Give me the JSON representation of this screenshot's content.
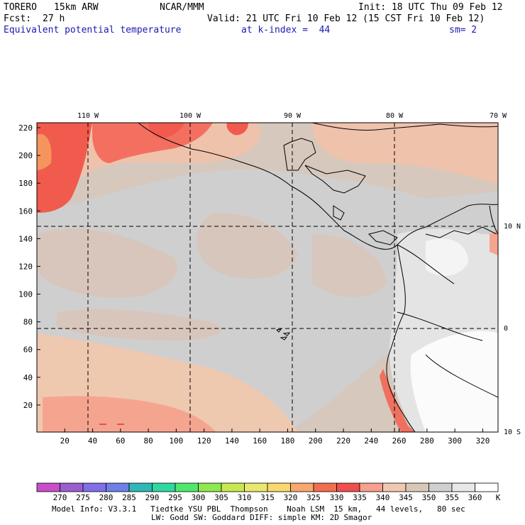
{
  "header": {
    "model": "TORERO",
    "resolution": "15km ARW",
    "center": "NCAR/MMM",
    "init": "Init: 18 UTC Thu 09 Feb 12",
    "fcst_label": "Fcst:",
    "fcst_value": "27 h",
    "valid": "Valid: 21 UTC Fri 10 Feb 12 (15 CST Fri 10 Feb 12)",
    "field": "Equivalent potential temperature",
    "level": "at k-index =  44",
    "smoothing": "sm= 2"
  },
  "map": {
    "lon_labels": [
      "110 W",
      "100 W",
      "90 W",
      "80 W",
      "70 W"
    ],
    "lat_labels": [
      "10 N",
      "0",
      "10 S"
    ],
    "y_ticks": [
      "220",
      "200",
      "180",
      "160",
      "140",
      "120",
      "100",
      "80",
      "60",
      "40",
      "20"
    ],
    "x_ticks": [
      "20",
      "40",
      "60",
      "80",
      "100",
      "120",
      "140",
      "160",
      "180",
      "200",
      "220",
      "240",
      "260",
      "280",
      "300",
      "320"
    ]
  },
  "colorbar": {
    "levels": [
      "270",
      "275",
      "280",
      "285",
      "290",
      "295",
      "300",
      "305",
      "310",
      "315",
      "320",
      "325",
      "330",
      "335",
      "340",
      "345",
      "350",
      "355",
      "360"
    ],
    "unit": "K",
    "colors": [
      "#c84fc8",
      "#9b5fd0",
      "#7f6fe8",
      "#6f7fe8",
      "#2fb8b8",
      "#2fd8a0",
      "#4fe86f",
      "#8fe84f",
      "#c8e84f",
      "#e8e86f",
      "#f8d86f",
      "#f8a86f",
      "#f06f4f",
      "#f04f4f",
      "#f89f8f",
      "#f0c8b0",
      "#d8c8b8",
      "#d0d0d0",
      "#e8e8e8",
      "#ffffff"
    ]
  },
  "footer": {
    "line1": "Model Info: V3.3.1   Tiedtke YSU PBL  Thompson    Noah LSM  15 km,   44 levels,   80 sec",
    "line2": "LW: Godd SW: Goddard DIFF: simple KM: 2D Smagor"
  }
}
